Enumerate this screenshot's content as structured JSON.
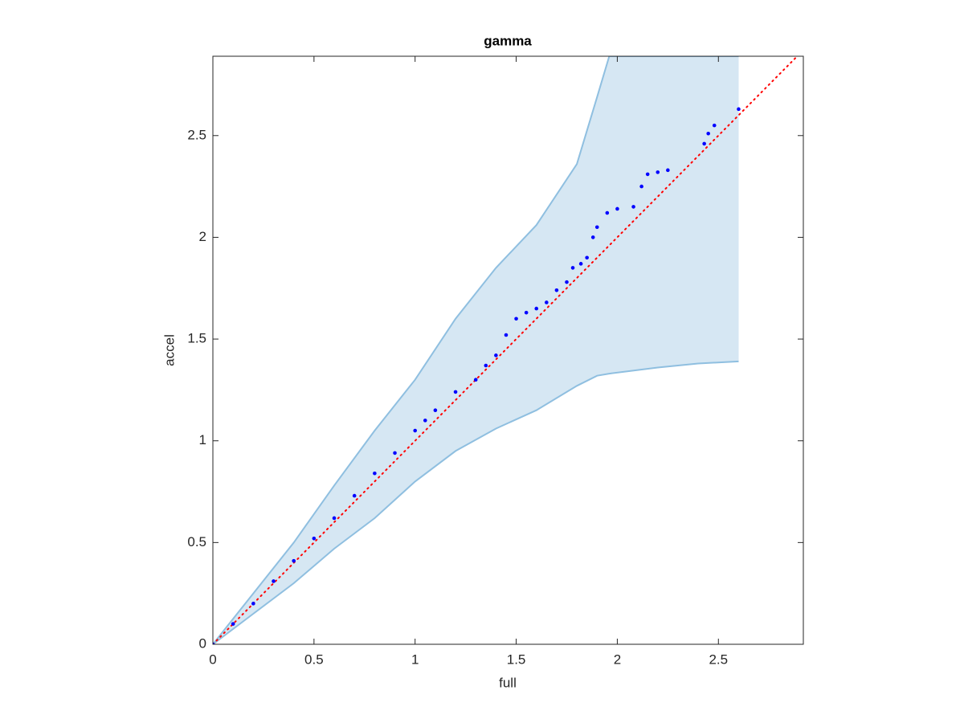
{
  "chart_data": {
    "type": "scatter",
    "title": "gamma",
    "xlabel": "full",
    "ylabel": "accel",
    "xlim": [
      0,
      2.92
    ],
    "ylim": [
      0,
      2.89
    ],
    "xticks": [
      0,
      0.5,
      1,
      1.5,
      2,
      2.5
    ],
    "yticks": [
      0,
      0.5,
      1,
      1.5,
      2,
      2.5
    ],
    "series": [
      {
        "color": "#0000ff",
        "x": [
          0,
          0.1,
          0.2,
          0.3,
          0.4,
          0.5,
          0.6,
          0.7,
          0.8,
          0.9,
          1.0,
          1.05,
          1.1,
          1.2,
          1.3,
          1.35,
          1.4,
          1.45,
          1.5,
          1.55,
          1.6,
          1.65,
          1.7,
          1.75,
          1.78,
          1.82,
          1.85,
          1.88,
          1.9,
          1.95,
          2.0,
          2.08,
          2.12,
          2.15,
          2.2,
          2.25,
          2.43,
          2.45,
          2.48,
          2.6
        ],
        "values": [
          0,
          0.1,
          0.2,
          0.31,
          0.41,
          0.52,
          0.62,
          0.73,
          0.84,
          0.94,
          1.05,
          1.1,
          1.15,
          1.24,
          1.3,
          1.37,
          1.42,
          1.52,
          1.6,
          1.63,
          1.65,
          1.68,
          1.74,
          1.78,
          1.85,
          1.87,
          1.9,
          2.0,
          2.05,
          2.12,
          2.14,
          2.15,
          2.25,
          2.31,
          2.32,
          2.33,
          2.46,
          2.51,
          2.55,
          2.63
        ]
      }
    ],
    "band": {
      "fill": "#d6e7f3",
      "edge": "#8fbfe0",
      "x": [
        0,
        0.2,
        0.4,
        0.6,
        0.8,
        1.0,
        1.2,
        1.4,
        1.6,
        1.8,
        1.9,
        1.96,
        2.2,
        2.4,
        2.6
      ],
      "upper": [
        0,
        0.25,
        0.5,
        0.78,
        1.05,
        1.3,
        1.6,
        1.85,
        2.06,
        2.36,
        2.69,
        2.89,
        2.89,
        2.89,
        2.89
      ],
      "lower": [
        0,
        0.15,
        0.3,
        0.47,
        0.62,
        0.8,
        0.95,
        1.06,
        1.15,
        1.27,
        1.32,
        1.33,
        1.36,
        1.38,
        1.39
      ]
    },
    "reference": {
      "color": "#ff0000",
      "x": [
        0,
        2.89
      ],
      "values": [
        0,
        2.89
      ]
    }
  }
}
